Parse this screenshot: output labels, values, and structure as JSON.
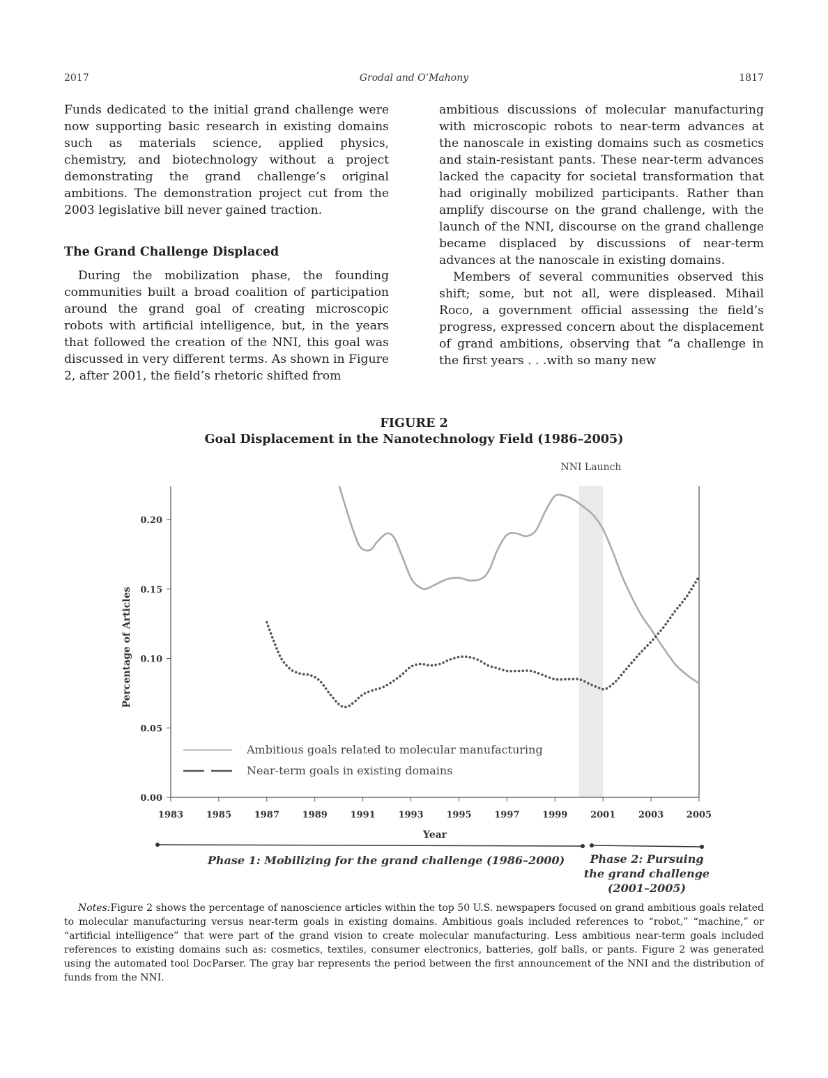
{
  "running_head": {
    "year": "2017",
    "authors": "Grodal and O’Mahony",
    "page_number": "1817"
  },
  "body": {
    "left_paragraph_1": "Funds dedicated to the initial grand challenge were now supporting basic research in existing domains such as materials science, applied physics, chemistry, and biotechnology without a project demonstrating the grand challenge’s original ambitions. The demonstration project cut from the 2003 legislative bill never gained traction.",
    "section_heading": "The Grand Challenge Displaced",
    "left_paragraph_2": "During the mobilization phase, the founding communities built a broad coalition of participation around the grand goal of creating microscopic robots with artificial intelligence, but, in the years that followed the creation of the NNI, this goal was discussed in very different terms. As shown in Figure 2, after 2001, the field’s rhetoric shifted from",
    "right_paragraph_1": "ambitious discussions of molecular manufacturing with microscopic robots to near-term advances at the nanoscale in existing domains such as cosmetics and stain-resistant pants. These near-term advances lacked the capacity for societal transformation that had originally mobilized participants. Rather than amplify discourse on the grand challenge, with the launch of the NNI, discourse on the grand challenge became displaced by discussions of near-term advances at the nanoscale in existing domains.",
    "right_paragraph_2": "Members of several communities observed this shift; some, but not all, were displeased. Mihail Roco, a government official assessing the field’s progress, expressed concern about the displacement of grand ambitions, observing that “a challenge in the first years . . .with so many new"
  },
  "figure": {
    "label": "FIGURE 2",
    "title": "Goal Displacement in the Nanotechnology Field (1986–2005)",
    "notes_label": "Notes:",
    "notes_text": "Figure 2 shows the percentage of nanoscience articles within the top 50 U.S. newspapers focused on grand ambitious goals related to molecular manufacturing versus near-term goals in existing domains. Ambitious goals included references to “robot,” “machine,” or “artificial intelligence” that were part of the grand vision to create molecular manufacturing. Less ambitious near-term goals included references to existing domains such as: cosmetics, textiles, consumer electronics, batteries, golf balls, or pants. Figure 2 was generated using the automated tool DocParser. The gray bar represents the period between the first announcement of the NNI and the distribution of funds from the NNI."
  },
  "chart_data": {
    "type": "line",
    "xlabel": "Year",
    "ylabel": "Percentage of Articles",
    "xlim": [
      1983,
      2005
    ],
    "ylim": [
      0.0,
      0.22
    ],
    "x_ticks": [
      "1983",
      "1985",
      "1987",
      "1989",
      "1991",
      "1993",
      "1995",
      "1997",
      "1999",
      "2001",
      "2003",
      "2005"
    ],
    "y_ticks": [
      "0.00",
      "0.05",
      "0.10",
      "0.15",
      "0.20"
    ],
    "grid": false,
    "legend_placement": "bottom-left",
    "shaded_band": {
      "label": "NNI Launch",
      "from": 2000.0,
      "to": 2001.0,
      "color": "#e9ebea"
    },
    "series": [
      {
        "name": "Ambitious goals related to molecular manufacturing",
        "style": "solid",
        "color": "#aaaaaa",
        "x": [
          1990.0,
          1990.3,
          1990.6,
          1990.9,
          1991.3,
          1991.6,
          1992.0,
          1992.3,
          1992.6,
          1993.0,
          1993.3,
          1993.6,
          1994.0,
          1994.5,
          1995.0,
          1995.5,
          1996.0,
          1996.3,
          1996.6,
          1997.0,
          1997.4,
          1997.8,
          1998.2,
          1998.6,
          1999.0,
          1999.4,
          1999.8,
          2000.2,
          2000.6,
          2001.0,
          2001.4,
          2001.8,
          2002.2,
          2002.6,
          2003.0,
          2003.5,
          2004.0,
          2004.5,
          2005.0
        ],
        "values": [
          0.225,
          0.208,
          0.192,
          0.18,
          0.178,
          0.184,
          0.19,
          0.187,
          0.175,
          0.158,
          0.152,
          0.15,
          0.153,
          0.157,
          0.158,
          0.156,
          0.158,
          0.165,
          0.178,
          0.189,
          0.19,
          0.188,
          0.192,
          0.206,
          0.217,
          0.217,
          0.214,
          0.209,
          0.203,
          0.193,
          0.177,
          0.159,
          0.144,
          0.131,
          0.121,
          0.108,
          0.096,
          0.088,
          0.082
        ]
      },
      {
        "name": "Near-term goals in existing domains",
        "style": "dotted",
        "color": "#555555",
        "x": [
          1987.0,
          1987.3,
          1987.6,
          1988.0,
          1988.4,
          1988.8,
          1989.2,
          1989.6,
          1990.0,
          1990.3,
          1990.6,
          1991.0,
          1991.4,
          1991.8,
          1992.2,
          1992.6,
          1993.0,
          1993.4,
          1993.8,
          1994.2,
          1994.6,
          1995.0,
          1995.4,
          1995.8,
          1996.2,
          1996.6,
          1997.0,
          1997.5,
          1998.0,
          1998.5,
          1999.0,
          1999.5,
          2000.0,
          2000.4,
          2000.8,
          2001.1,
          2001.5,
          2002.0,
          2002.5,
          2003.0,
          2003.5,
          2004.0,
          2004.5,
          2005.0
        ],
        "values": [
          0.126,
          0.112,
          0.1,
          0.092,
          0.089,
          0.088,
          0.084,
          0.075,
          0.067,
          0.065,
          0.068,
          0.074,
          0.077,
          0.079,
          0.083,
          0.088,
          0.094,
          0.096,
          0.095,
          0.096,
          0.099,
          0.101,
          0.101,
          0.099,
          0.095,
          0.093,
          0.091,
          0.091,
          0.091,
          0.088,
          0.085,
          0.085,
          0.085,
          0.082,
          0.079,
          0.078,
          0.083,
          0.093,
          0.103,
          0.112,
          0.122,
          0.134,
          0.145,
          0.159
        ]
      }
    ],
    "phases": [
      {
        "label": "Phase 1: Mobilizing for the grand challenge (1986–2000)",
        "from": 1982.4,
        "to": 2000.1
      },
      {
        "label_lines": [
          "Phase 2: Pursuing",
          "the grand challenge",
          "(2001–2005)"
        ],
        "from": 2000.4,
        "to": 2005.1
      }
    ]
  }
}
